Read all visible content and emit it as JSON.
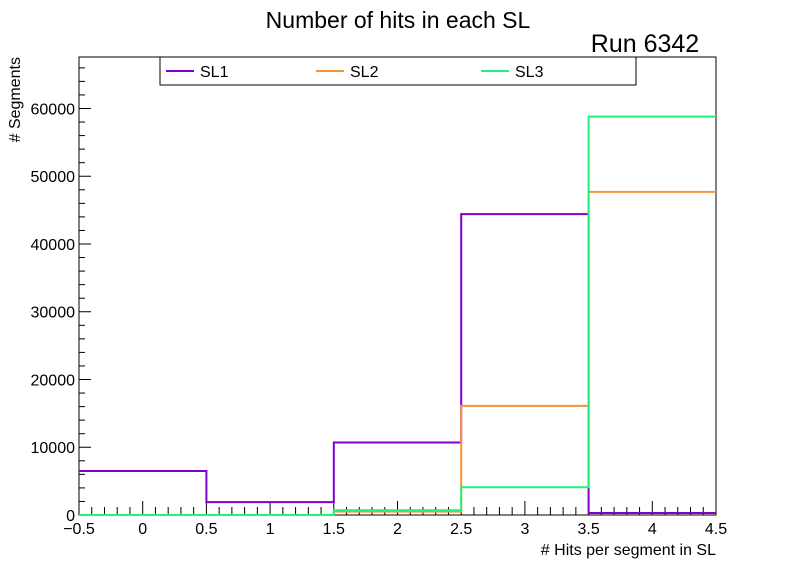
{
  "chart_data": {
    "type": "histogram-step",
    "title": "Number of hits in each SL",
    "annotation": "Run 6342",
    "xlabel": "# Hits per segment in SL",
    "ylabel": "# Segments",
    "xlim": [
      -0.5,
      4.5
    ],
    "ylim": [
      0,
      67600
    ],
    "bin_edges": [
      -0.5,
      0.5,
      1.5,
      2.5,
      3.5,
      4.5
    ],
    "x_ticks": [
      -0.5,
      0,
      0.5,
      1,
      1.5,
      2,
      2.5,
      3,
      3.5,
      4,
      4.5
    ],
    "x_tick_labels": [
      "−0.5",
      "0",
      "0.5",
      "1",
      "1.5",
      "2",
      "2.5",
      "3",
      "3.5",
      "4",
      "4.5"
    ],
    "y_ticks": [
      0,
      10000,
      20000,
      30000,
      40000,
      50000,
      60000
    ],
    "y_tick_labels": [
      "0",
      "10000",
      "20000",
      "30000",
      "40000",
      "50000",
      "60000"
    ],
    "legend_position": "top",
    "series": [
      {
        "name": "SL1",
        "color": "#8000d0",
        "values": [
          6500,
          1900,
          10700,
          44400,
          300
        ]
      },
      {
        "name": "SL2",
        "color": "#f39435",
        "values": [
          0,
          0,
          500,
          16100,
          47700
        ]
      },
      {
        "name": "SL3",
        "color": "#1ff47a",
        "values": [
          0,
          0,
          700,
          4100,
          58800
        ]
      }
    ]
  }
}
